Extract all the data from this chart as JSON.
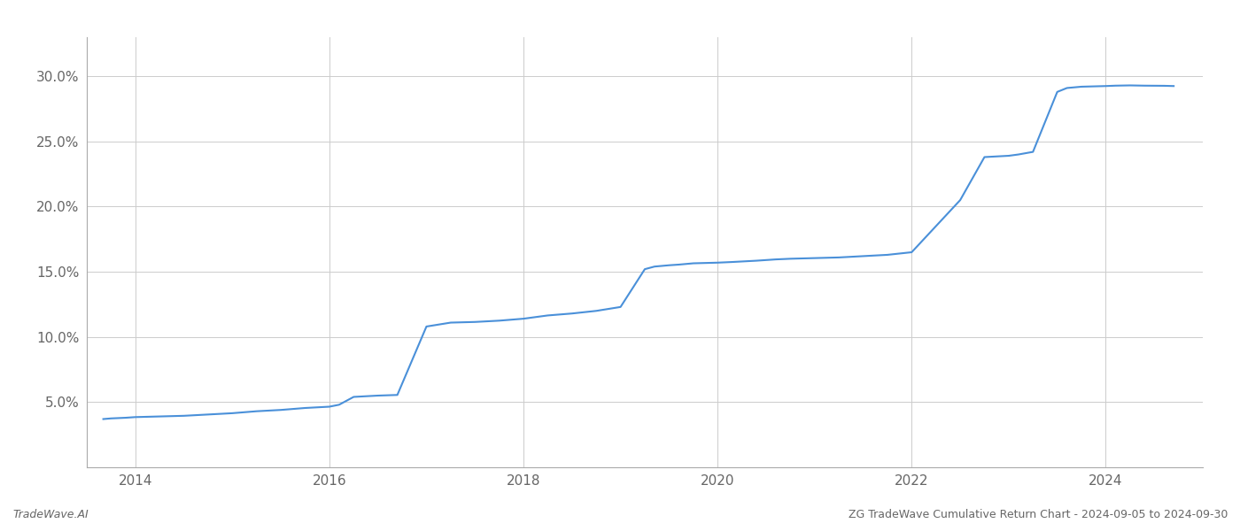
{
  "title": "ZG TradeWave Cumulative Return Chart - 2024-09-05 to 2024-09-30",
  "watermark": "TradeWave.AI",
  "line_color": "#4a90d9",
  "line_width": 1.5,
  "background_color": "#ffffff",
  "grid_color": "#cccccc",
  "x_values": [
    2013.67,
    2013.75,
    2013.9,
    2014.0,
    2014.25,
    2014.5,
    2014.75,
    2015.0,
    2015.25,
    2015.5,
    2015.75,
    2016.0,
    2016.1,
    2016.25,
    2016.5,
    2016.7,
    2017.0,
    2017.25,
    2017.5,
    2017.75,
    2018.0,
    2018.25,
    2018.5,
    2018.75,
    2019.0,
    2019.25,
    2019.35,
    2019.5,
    2019.6,
    2019.75,
    2020.0,
    2020.15,
    2020.4,
    2020.6,
    2020.75,
    2021.0,
    2021.25,
    2021.5,
    2021.75,
    2022.0,
    2022.25,
    2022.5,
    2022.75,
    2023.0,
    2023.1,
    2023.25,
    2023.5,
    2023.6,
    2023.75,
    2024.0,
    2024.1,
    2024.25,
    2024.4,
    2024.6,
    2024.7
  ],
  "y_values": [
    3.7,
    3.75,
    3.8,
    3.85,
    3.9,
    3.95,
    4.05,
    4.15,
    4.3,
    4.4,
    4.55,
    4.65,
    4.8,
    5.4,
    5.5,
    5.55,
    10.8,
    11.1,
    11.15,
    11.25,
    11.4,
    11.65,
    11.8,
    12.0,
    12.3,
    15.2,
    15.4,
    15.5,
    15.55,
    15.65,
    15.7,
    15.75,
    15.85,
    15.95,
    16.0,
    16.05,
    16.1,
    16.2,
    16.3,
    16.5,
    18.5,
    20.5,
    23.8,
    23.9,
    24.0,
    24.2,
    28.8,
    29.1,
    29.2,
    29.25,
    29.28,
    29.3,
    29.28,
    29.27,
    29.25
  ],
  "xlim": [
    2013.5,
    2025.0
  ],
  "ylim": [
    0,
    33
  ],
  "xticks": [
    2014,
    2016,
    2018,
    2020,
    2022,
    2024
  ],
  "yticks": [
    5.0,
    10.0,
    15.0,
    20.0,
    25.0,
    30.0
  ],
  "xlabel": "",
  "ylabel": "",
  "tick_fontsize": 11,
  "label_color": "#666666",
  "footer_left": "TradeWave.AI",
  "footer_right": "ZG TradeWave Cumulative Return Chart - 2024-09-05 to 2024-09-30",
  "footer_fontsize": 9
}
